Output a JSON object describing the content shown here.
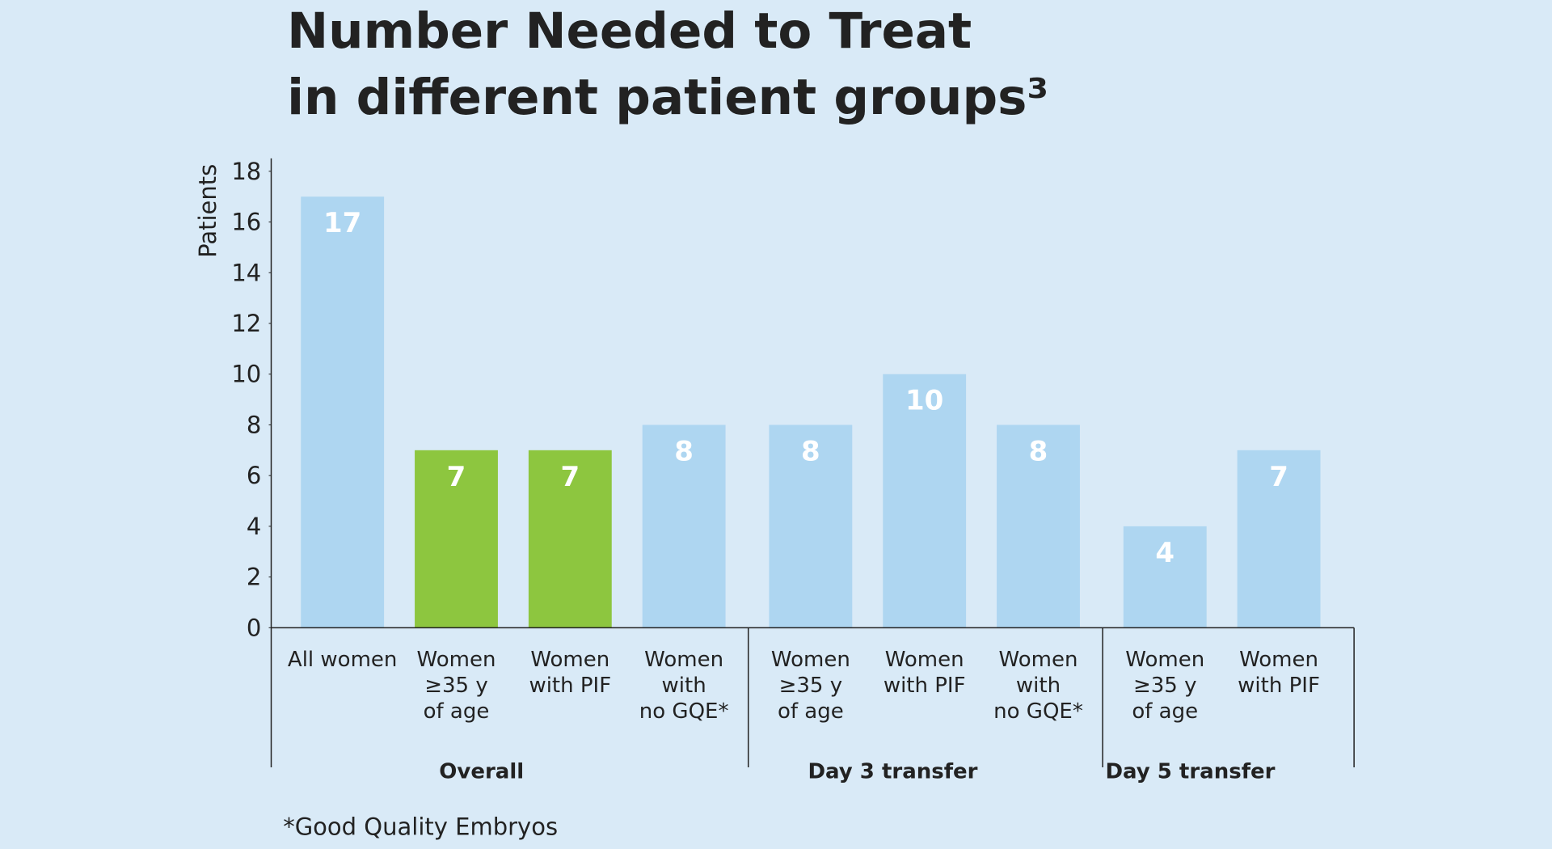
{
  "chart_data": {
    "type": "bar",
    "title": "Number Needed to Treat\nin different patient groups³",
    "y_label": "Patients",
    "footnote": "*Good Quality Embryos",
    "ylim": [
      0,
      18
    ],
    "yticks": [
      0,
      2,
      4,
      6,
      8,
      10,
      12,
      14,
      16,
      18
    ],
    "groups": [
      {
        "name": "Overall",
        "categories": [
          "All women",
          "Women\n≥35 y\nof age",
          "Women\nwith PIF",
          "Women\nwith\nno GQE*"
        ],
        "values": [
          17,
          7,
          7,
          8
        ],
        "colors": [
          "#aed6f1",
          "#8dc63f",
          "#8dc63f",
          "#aed6f1"
        ]
      },
      {
        "name": "Day 3 transfer",
        "categories": [
          "Women\n≥35 y\nof age",
          "Women\nwith PIF",
          "Women\nwith\nno GQE*"
        ],
        "values": [
          8,
          10,
          8
        ],
        "colors": [
          "#aed6f1",
          "#aed6f1",
          "#aed6f1"
        ]
      },
      {
        "name": "Day 5 transfer",
        "categories": [
          "Women\n≥35 y\nof age",
          "Women\nwith PIF"
        ],
        "values": [
          4,
          7
        ],
        "colors": [
          "#aed6f1",
          "#aed6f1"
        ]
      }
    ]
  }
}
